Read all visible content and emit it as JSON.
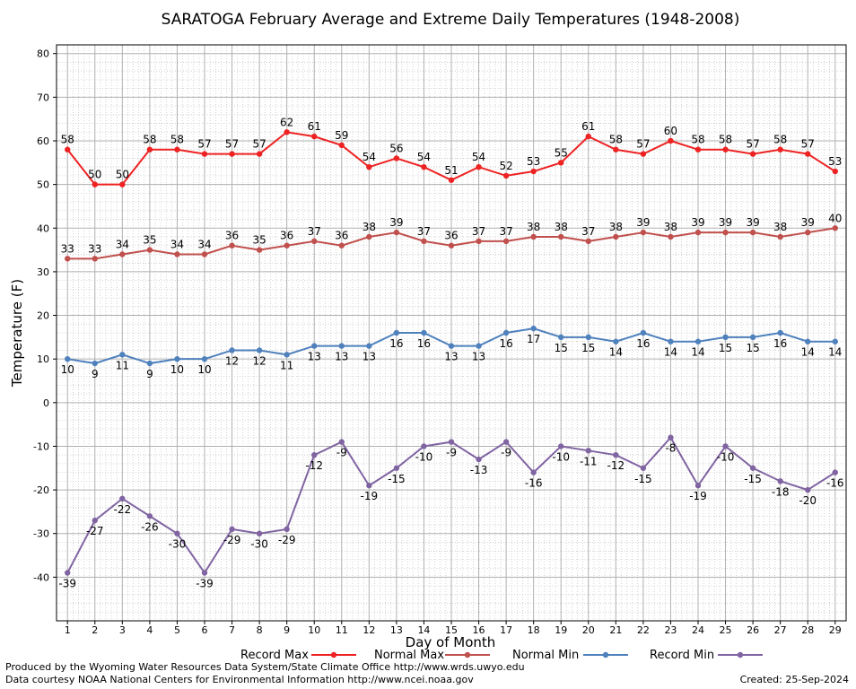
{
  "chart_data": {
    "type": "line",
    "title": "SARATOGA February Average and Extreme Daily Temperatures (1948-2008)",
    "xlabel": "Day of Month",
    "ylabel": "Temperature (F)",
    "x": [
      1,
      2,
      3,
      4,
      5,
      6,
      7,
      8,
      9,
      10,
      11,
      12,
      13,
      14,
      15,
      16,
      17,
      18,
      19,
      20,
      21,
      22,
      23,
      24,
      25,
      26,
      27,
      28,
      29
    ],
    "xlim": [
      0.6,
      29.4
    ],
    "ylim": [
      -50,
      82
    ],
    "yticks": [
      -40,
      -30,
      -20,
      -10,
      0,
      10,
      20,
      30,
      40,
      50,
      60,
      70,
      80
    ],
    "grid": true,
    "legend_position": "bottom",
    "series": [
      {
        "name": "Record Max",
        "color": "#ee2222",
        "label_pos": "above",
        "values": [
          58,
          50,
          50,
          58,
          58,
          57,
          57,
          57,
          62,
          61,
          59,
          54,
          56,
          54,
          51,
          54,
          52,
          53,
          55,
          61,
          58,
          57,
          60,
          58,
          58,
          57,
          58,
          57,
          53
        ]
      },
      {
        "name": "Normal Max",
        "color": "#c0504d",
        "label_pos": "above",
        "values": [
          33,
          33,
          34,
          35,
          34,
          34,
          36,
          35,
          36,
          37,
          36,
          38,
          39,
          37,
          36,
          37,
          37,
          38,
          38,
          37,
          38,
          39,
          38,
          39,
          39,
          39,
          38,
          39,
          40
        ]
      },
      {
        "name": "Normal Min",
        "color": "#4f81bd",
        "label_pos": "below",
        "values": [
          10,
          9,
          11,
          9,
          10,
          10,
          12,
          12,
          11,
          13,
          13,
          13,
          16,
          16,
          13,
          13,
          16,
          17,
          15,
          15,
          14,
          16,
          14,
          14,
          15,
          15,
          16,
          14,
          14
        ]
      },
      {
        "name": "Record Min",
        "color": "#8064a2",
        "label_pos": "below",
        "values": [
          -39,
          -27,
          -22,
          -26,
          -30,
          -39,
          -29,
          -30,
          -29,
          -12,
          -9,
          -19,
          -15,
          -10,
          -9,
          -13,
          -9,
          -16,
          -10,
          -11,
          -12,
          -15,
          -8,
          -19,
          -10,
          -15,
          -18,
          -20,
          -16
        ]
      }
    ]
  },
  "footer": {
    "credit_line1": "Produced by the Wyoming Water Resources Data System/State Climate Office http://www.wrds.uwyo.edu",
    "credit_line2": "Data courtesy NOAA National Centers for Environmental Information http://www.ncei.noaa.gov",
    "created": "Created:  25-Sep-2024"
  }
}
